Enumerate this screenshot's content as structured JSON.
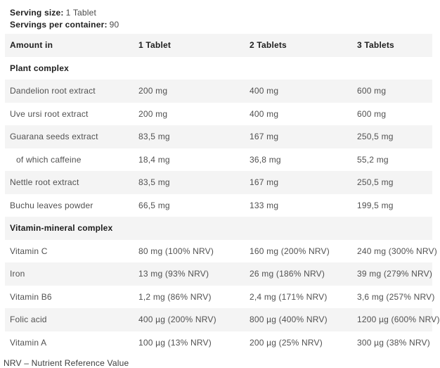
{
  "serving": {
    "size_label": "Serving size:",
    "size_value": "1 Tablet",
    "container_label": "Servings per container:",
    "container_value": "90"
  },
  "table": {
    "headers": [
      "Amount in",
      "1 Tablet",
      "2 Tablets",
      "3 Tablets"
    ],
    "sections": [
      {
        "title": "Plant complex",
        "rows": [
          {
            "name": "Dandelion root extract",
            "indent": false,
            "values": [
              "200 mg",
              "400 mg",
              "600 mg"
            ]
          },
          {
            "name": "Uve ursi root extract",
            "indent": false,
            "values": [
              "200 mg",
              "400 mg",
              "600 mg"
            ]
          },
          {
            "name": "Guarana seeds extract",
            "indent": false,
            "values": [
              "83,5 mg",
              "167 mg",
              "250,5 mg"
            ]
          },
          {
            "name": "of which caffeine",
            "indent": true,
            "values": [
              "18,4 mg",
              "36,8 mg",
              "55,2 mg"
            ]
          },
          {
            "name": "Nettle root extract",
            "indent": false,
            "values": [
              "83,5 mg",
              "167 mg",
              "250,5 mg"
            ]
          },
          {
            "name": "Buchu leaves powder",
            "indent": false,
            "values": [
              "66,5 mg",
              "133 mg",
              "199,5 mg"
            ]
          }
        ]
      },
      {
        "title": "Vitamin-mineral complex",
        "rows": [
          {
            "name": "Vitamin C",
            "indent": false,
            "values": [
              "80 mg (100% NRV)",
              "160 mg (200% NRV)",
              "240 mg (300% NRV)"
            ]
          },
          {
            "name": "Iron",
            "indent": false,
            "values": [
              "13 mg (93% NRV)",
              "26 mg (186% NRV)",
              "39 mg (279% NRV)"
            ]
          },
          {
            "name": "Vitamin B6",
            "indent": false,
            "values": [
              "1,2 mg (86% NRV)",
              "2,4 mg (171% NRV)",
              "3,6 mg (257% NRV)"
            ]
          },
          {
            "name": "Folic acid",
            "indent": false,
            "values": [
              "400 µg (200% NRV)",
              "800 µg (400% NRV)",
              "1200 µg (600% NRV)"
            ]
          },
          {
            "name": "Vitamin A",
            "indent": false,
            "values": [
              "100 µg (13% NRV)",
              "200 µg (25% NRV)",
              "300 µg (38% NRV)"
            ]
          }
        ]
      }
    ]
  },
  "footnote": "NRV – Nutrient Reference Value",
  "colors": {
    "band": "#f4f4f4",
    "heading_text": "#1e1e1e",
    "body_text": "#515151"
  }
}
